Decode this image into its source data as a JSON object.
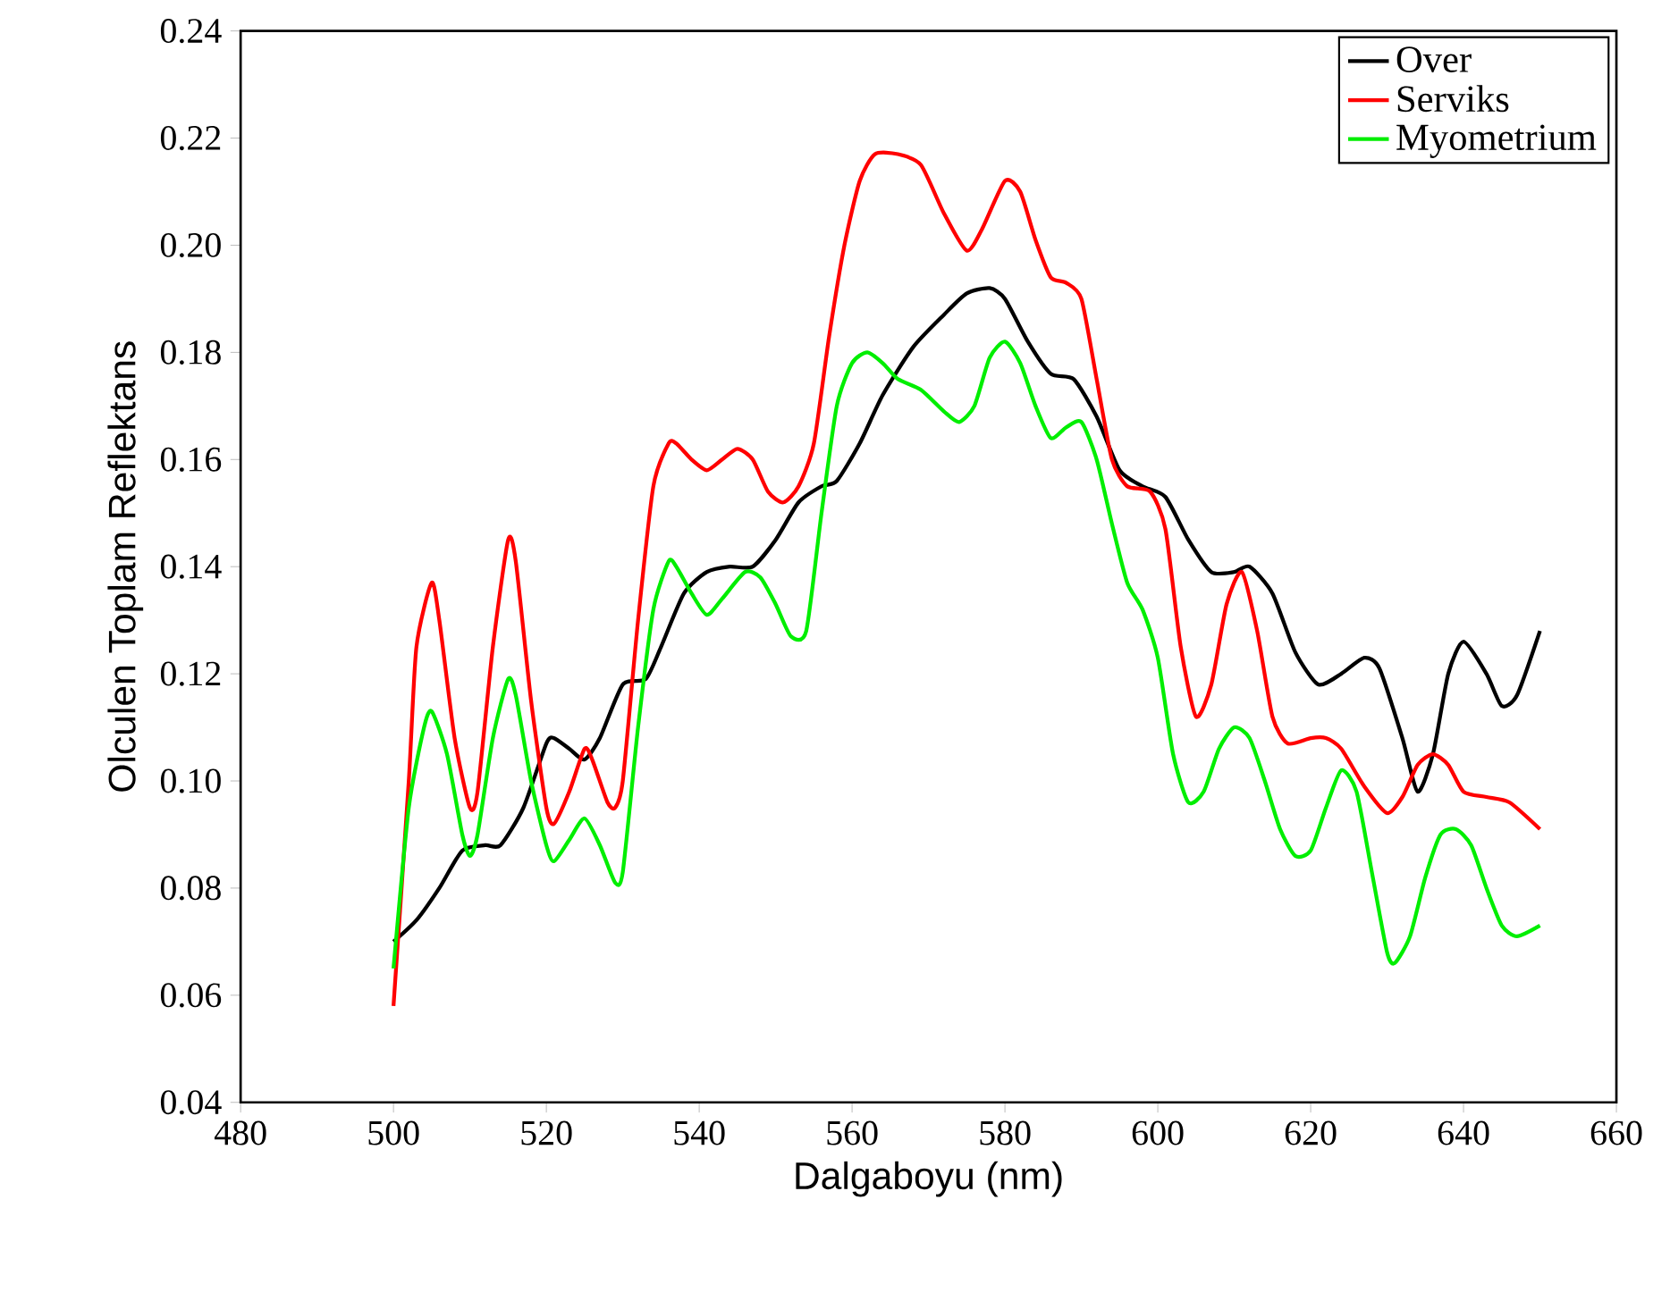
{
  "chart_data": {
    "type": "line",
    "xlabel": "Dalgaboyu (nm)",
    "ylabel": "Olculen Toplam Reflektans",
    "xlim": [
      480,
      660
    ],
    "xticks": [
      480,
      500,
      520,
      540,
      560,
      580,
      600,
      620,
      640,
      660
    ],
    "ylim": [
      0.04,
      0.24
    ],
    "yticks": [
      0.04,
      0.06,
      0.08,
      {
        "value": 0.1,
        "label": "0.10"
      },
      0.12,
      0.14,
      0.16,
      0.18,
      {
        "value": 0.2,
        "label": "0.20"
      },
      0.22,
      0.24
    ],
    "grid": false,
    "legend": "top right",
    "line_style": "solid",
    "series": [
      {
        "name": "Over",
        "color": "#000000",
        "x": [
          500,
          503,
          506,
          509,
          512,
          514,
          517,
          520,
          521,
          523,
          525,
          527,
          530,
          533,
          535,
          538,
          541,
          544,
          547,
          550,
          553,
          556,
          558,
          561,
          564,
          568,
          572,
          575,
          578,
          580,
          583,
          586,
          589,
          592,
          595,
          598,
          601,
          604,
          607,
          610,
          612,
          615,
          618,
          621,
          624,
          627,
          629,
          632,
          634,
          636,
          638,
          640,
          643,
          645,
          647,
          650
        ],
        "values": [
          0.07,
          0.074,
          0.08,
          0.087,
          0.088,
          0.088,
          0.095,
          0.107,
          0.108,
          0.106,
          0.104,
          0.108,
          0.118,
          0.119,
          0.125,
          0.135,
          0.139,
          0.14,
          0.14,
          0.145,
          0.152,
          0.155,
          0.156,
          0.163,
          0.172,
          0.181,
          0.187,
          0.191,
          0.192,
          0.19,
          0.182,
          0.176,
          0.175,
          0.168,
          0.158,
          0.155,
          0.153,
          0.145,
          0.139,
          0.139,
          0.14,
          0.135,
          0.124,
          0.118,
          0.12,
          0.123,
          0.121,
          0.108,
          0.098,
          0.105,
          0.12,
          0.126,
          0.12,
          0.114,
          0.116,
          0.128
        ]
      },
      {
        "name": "Serviks",
        "color": "#ff0000",
        "x": [
          500,
          502,
          503,
          505,
          506,
          508,
          510,
          511,
          513,
          515,
          516,
          518,
          520,
          521,
          523,
          525,
          526,
          528,
          529,
          530,
          532,
          534,
          536,
          537,
          539,
          541,
          543,
          545,
          547,
          549,
          551,
          553,
          555,
          557,
          559,
          561,
          563,
          566,
          569,
          572,
          575,
          577,
          580,
          582,
          584,
          586,
          588,
          590,
          592,
          594,
          596,
          599,
          601,
          603,
          605,
          607,
          609,
          611,
          613,
          615,
          617,
          620,
          622,
          624,
          627,
          630,
          632,
          634,
          636,
          638,
          640,
          643,
          646,
          650
        ],
        "values": [
          0.058,
          0.1,
          0.125,
          0.137,
          0.13,
          0.108,
          0.095,
          0.098,
          0.125,
          0.145,
          0.141,
          0.115,
          0.095,
          0.092,
          0.098,
          0.106,
          0.104,
          0.096,
          0.095,
          0.1,
          0.13,
          0.155,
          0.163,
          0.163,
          0.16,
          0.158,
          0.16,
          0.162,
          0.16,
          0.154,
          0.152,
          0.155,
          0.163,
          0.183,
          0.2,
          0.212,
          0.217,
          0.217,
          0.215,
          0.206,
          0.199,
          0.203,
          0.212,
          0.21,
          0.201,
          0.194,
          0.193,
          0.19,
          0.175,
          0.16,
          0.155,
          0.154,
          0.147,
          0.125,
          0.112,
          0.118,
          0.133,
          0.139,
          0.128,
          0.112,
          0.107,
          0.108,
          0.108,
          0.106,
          0.099,
          0.094,
          0.097,
          0.103,
          0.105,
          0.103,
          0.098,
          0.097,
          0.096,
          0.091
        ]
      },
      {
        "name": "Myometrium",
        "color": "#00ee00",
        "x": [
          500,
          502,
          504,
          505,
          507,
          509,
          510,
          511,
          513,
          515,
          516,
          518,
          520,
          521,
          523,
          525,
          527,
          529,
          530,
          532,
          534,
          536,
          537,
          539,
          541,
          543,
          546,
          548,
          550,
          552,
          554,
          556,
          558,
          560,
          562,
          564,
          566,
          569,
          572,
          574,
          576,
          578,
          580,
          582,
          584,
          586,
          588,
          590,
          592,
          594,
          596,
          598,
          600,
          602,
          604,
          606,
          608,
          610,
          612,
          614,
          616,
          618,
          620,
          622,
          624,
          626,
          628,
          630,
          631,
          633,
          635,
          637,
          639,
          641,
          643,
          645,
          647,
          650
        ],
        "values": [
          0.065,
          0.095,
          0.11,
          0.113,
          0.105,
          0.09,
          0.086,
          0.09,
          0.108,
          0.119,
          0.116,
          0.1,
          0.088,
          0.085,
          0.089,
          0.093,
          0.088,
          0.081,
          0.083,
          0.11,
          0.132,
          0.141,
          0.14,
          0.135,
          0.131,
          0.134,
          0.139,
          0.138,
          0.133,
          0.127,
          0.128,
          0.15,
          0.17,
          0.178,
          0.18,
          0.178,
          0.175,
          0.173,
          0.169,
          0.167,
          0.17,
          0.179,
          0.182,
          0.178,
          0.17,
          0.164,
          0.166,
          0.167,
          0.16,
          0.148,
          0.137,
          0.132,
          0.123,
          0.105,
          0.096,
          0.098,
          0.106,
          0.11,
          0.108,
          0.1,
          0.091,
          0.086,
          0.087,
          0.095,
          0.102,
          0.098,
          0.083,
          0.068,
          0.066,
          0.071,
          0.082,
          0.09,
          0.091,
          0.088,
          0.08,
          0.073,
          0.071,
          0.073
        ]
      }
    ]
  }
}
